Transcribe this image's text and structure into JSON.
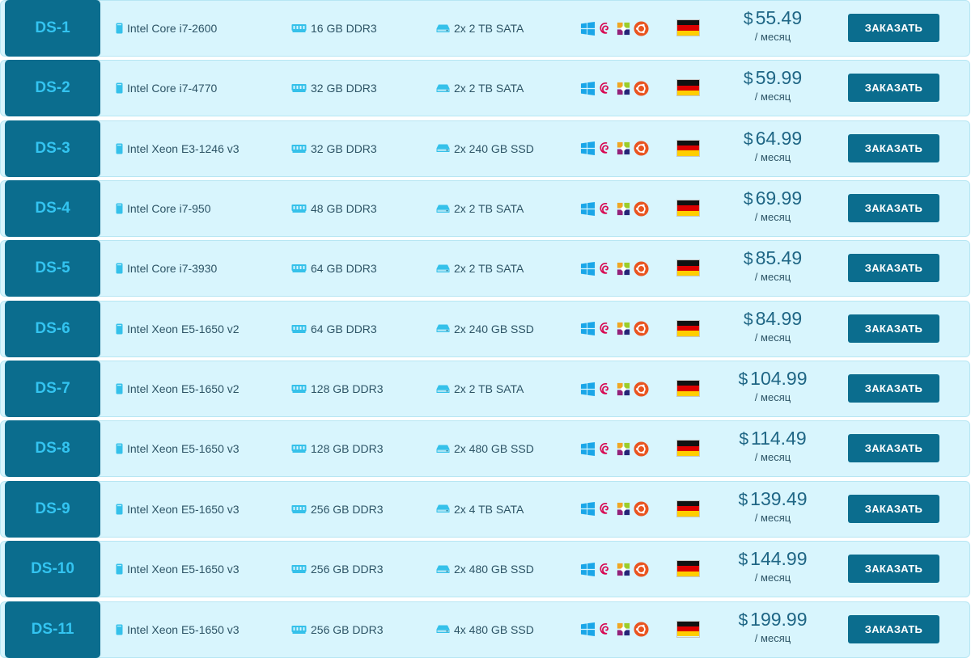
{
  "currency_symbol": "$",
  "period_label": "/ месяц",
  "order_label": "ЗАКАЗАТЬ",
  "os_icons": [
    "windows-icon",
    "debian-icon",
    "centos-icon",
    "ubuntu-icon"
  ],
  "location_flag": "germany-flag-icon",
  "colors": {
    "accent": "#0b6d8e",
    "name_text": "#33c4f1",
    "row_bg": "#d8f5fd",
    "price": "#1f6685"
  },
  "servers": [
    {
      "name": "DS-1",
      "cpu": "Intel Core i7-2600",
      "ram": "16 GB DDR3",
      "disk": "2x 2 TB SATA",
      "price": "55.49"
    },
    {
      "name": "DS-2",
      "cpu": "Intel Core i7-4770",
      "ram": "32 GB DDR3",
      "disk": "2x 2 TB SATA",
      "price": "59.99"
    },
    {
      "name": "DS-3",
      "cpu": "Intel Xeon E3-1246 v3",
      "ram": "32 GB DDR3",
      "disk": "2x 240 GB SSD",
      "price": "64.99"
    },
    {
      "name": "DS-4",
      "cpu": "Intel Core i7-950",
      "ram": "48 GB DDR3",
      "disk": "2x 2 TB SATA",
      "price": "69.99"
    },
    {
      "name": "DS-5",
      "cpu": "Intel Core i7-3930",
      "ram": "64 GB DDR3",
      "disk": "2x 2 TB SATA",
      "price": "85.49"
    },
    {
      "name": "DS-6",
      "cpu": "Intel Xeon E5-1650 v2",
      "ram": "64 GB DDR3",
      "disk": "2x 240 GB SSD",
      "price": "84.99"
    },
    {
      "name": "DS-7",
      "cpu": "Intel Xeon E5-1650 v2",
      "ram": "128 GB DDR3",
      "disk": "2x 2 TB SATA",
      "price": "104.99"
    },
    {
      "name": "DS-8",
      "cpu": "Intel Xeon E5-1650 v3",
      "ram": "128 GB DDR3",
      "disk": "2x 480 GB SSD",
      "price": "114.49"
    },
    {
      "name": "DS-9",
      "cpu": "Intel Xeon E5-1650 v3",
      "ram": "256 GB DDR3",
      "disk": "2x 4 TB SATA",
      "price": "139.49"
    },
    {
      "name": "DS-10",
      "cpu": "Intel Xeon E5-1650 v3",
      "ram": "256 GB DDR3",
      "disk": "2x 480 GB SSD",
      "price": "144.99"
    },
    {
      "name": "DS-11",
      "cpu": "Intel Xeon E5-1650 v3",
      "ram": "256 GB DDR3",
      "disk": "4x 480 GB SSD",
      "price": "199.99"
    }
  ]
}
